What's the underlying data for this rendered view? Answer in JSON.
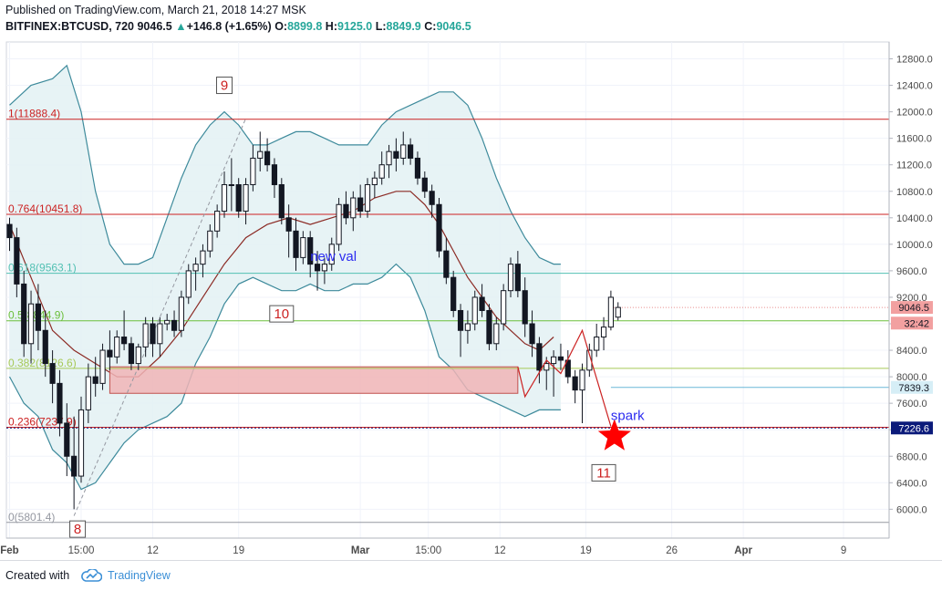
{
  "header": {
    "published": "Published on TradingView.com, March 21, 2018 14:27 MSK",
    "symbol": "BITFINEX:BTCUSD, 720",
    "last": "9046.5",
    "change": "+146.8 (+1.65%)",
    "o_label": "O:",
    "o_value": "8899.8",
    "h_label": "H:",
    "h_value": "9125.0",
    "l_label": "L:",
    "l_value": "8849.9",
    "c_label": "C:",
    "c_value": "9046.5"
  },
  "footer": {
    "created_with": "Created with",
    "brand": "TradingView"
  },
  "colors": {
    "up": "#26a69a",
    "candle": "#131722",
    "bb_line": "#3d8a9b",
    "bb_fill": "#e3f1f3",
    "basis": "#8b2a24",
    "fib_red": "#cc2222",
    "fib_teal": "#52c0b3",
    "fib_green": "#6cbf3c",
    "fib_lime": "#a7c957",
    "zone_fill": "#f0b4b6",
    "zone_edge": "#c0504d",
    "star": "#ff0000",
    "label_blue": "#2c2cf0",
    "price_badge": "#f2a0a0",
    "price_dark": "#0b1a7a",
    "price_blue": "#d6eef6"
  },
  "chart_data": {
    "type": "candlestick",
    "symbol": "BITFINEX:BTCUSD",
    "timeframe": "720",
    "ylim": [
      5700,
      12950
    ],
    "y_ticks": [
      6000,
      6400,
      6800,
      7200,
      7600,
      8000,
      8400,
      8800,
      9200,
      9600,
      10000,
      10400,
      10800,
      11200,
      11600,
      12000,
      12400,
      12800
    ],
    "y_tick_labels": [
      "6000.0",
      "6400.0",
      "6800.0",
      "7200.0",
      "7600.0",
      "8000.0",
      "8400.0",
      "8800.0",
      "9200.0",
      "9600.0",
      "10000.0",
      "10400.0",
      "10800.0",
      "11200.0",
      "11600.0",
      "12000.0",
      "12400.0",
      "12800.0"
    ],
    "x_ticks": [
      {
        "label": "Feb",
        "t": 0,
        "bold": true
      },
      {
        "label": "15:00",
        "t": 10
      },
      {
        "label": "12",
        "t": 20
      },
      {
        "label": "19",
        "t": 32
      },
      {
        "label": "Mar",
        "t": 49,
        "bold": true
      },
      {
        "label": "15:00",
        "t": 58.5
      },
      {
        "label": "12",
        "t": 68.5
      },
      {
        "label": "19",
        "t": 80.5
      },
      {
        "label": "26",
        "t": 92.5
      },
      {
        "label": "Apr",
        "t": 102.5,
        "bold": true
      },
      {
        "label": "9",
        "t": 116.5
      }
    ],
    "candles": [
      [
        10300,
        10400,
        9900,
        10100
      ],
      [
        10100,
        10250,
        9200,
        9400
      ],
      [
        9400,
        9600,
        8300,
        8500
      ],
      [
        8500,
        9300,
        8200,
        9100
      ],
      [
        9100,
        9400,
        8400,
        8700
      ],
      [
        8700,
        9000,
        8000,
        8200
      ],
      [
        8200,
        8400,
        7600,
        7900
      ],
      [
        7900,
        8100,
        7100,
        7300
      ],
      [
        7300,
        7600,
        6500,
        6800
      ],
      [
        6800,
        7400,
        6000,
        6500
      ],
      [
        6500,
        7700,
        6400,
        7500
      ],
      [
        7500,
        8200,
        7300,
        8000
      ],
      [
        8000,
        8300,
        7700,
        7900
      ],
      [
        7900,
        8500,
        7800,
        8400
      ],
      [
        8400,
        8700,
        8100,
        8300
      ],
      [
        8300,
        8700,
        8200,
        8600
      ],
      [
        8600,
        9000,
        8400,
        8500
      ],
      [
        8500,
        8600,
        8100,
        8200
      ],
      [
        8200,
        8500,
        8100,
        8450
      ],
      [
        8450,
        8900,
        8300,
        8800
      ],
      [
        8800,
        8900,
        8300,
        8500
      ],
      [
        8500,
        8900,
        8300,
        8800
      ],
      [
        8800,
        8950,
        8700,
        8850
      ],
      [
        8850,
        9000,
        8600,
        8700
      ],
      [
        8700,
        9300,
        8600,
        9200
      ],
      [
        9200,
        9700,
        9100,
        9600
      ],
      [
        9600,
        9800,
        9300,
        9700
      ],
      [
        9700,
        10000,
        9500,
        9900
      ],
      [
        9900,
        10300,
        9800,
        10200
      ],
      [
        10200,
        10600,
        10100,
        10500
      ],
      [
        10500,
        11100,
        10400,
        10900
      ],
      [
        10900,
        11300,
        10500,
        10900
      ],
      [
        10900,
        11000,
        10400,
        10500
      ],
      [
        10500,
        11000,
        10300,
        10900
      ],
      [
        10900,
        11500,
        10800,
        11300
      ],
      [
        11300,
        11700,
        11100,
        11400
      ],
      [
        11400,
        11600,
        11100,
        11200
      ],
      [
        11200,
        11300,
        10700,
        10900
      ],
      [
        10900,
        11000,
        10300,
        10400
      ],
      [
        10400,
        10600,
        9800,
        10200
      ],
      [
        10200,
        10400,
        9600,
        9800
      ],
      [
        9800,
        10200,
        9700,
        10100
      ],
      [
        10100,
        10200,
        9500,
        9700
      ],
      [
        9700,
        9900,
        9300,
        9600
      ],
      [
        9600,
        9800,
        9400,
        9700
      ],
      [
        9700,
        10100,
        9600,
        10000
      ],
      [
        10000,
        10700,
        9900,
        10600
      ],
      [
        10600,
        10800,
        10300,
        10400
      ],
      [
        10400,
        10800,
        10200,
        10700
      ],
      [
        10700,
        10900,
        10400,
        10500
      ],
      [
        10500,
        11000,
        10400,
        10900
      ],
      [
        10900,
        11100,
        10700,
        11000
      ],
      [
        11000,
        11400,
        10900,
        11200
      ],
      [
        11200,
        11500,
        11000,
        11400
      ],
      [
        11400,
        11600,
        11100,
        11300
      ],
      [
        11300,
        11700,
        11200,
        11500
      ],
      [
        11500,
        11600,
        11200,
        11300
      ],
      [
        11300,
        11400,
        10900,
        11000
      ],
      [
        11000,
        11100,
        10700,
        10800
      ],
      [
        10800,
        10900,
        10400,
        10600
      ],
      [
        10600,
        10700,
        9800,
        9900
      ],
      [
        9900,
        10100,
        9400,
        9500
      ],
      [
        9500,
        9600,
        8900,
        9000
      ],
      [
        9000,
        9100,
        8300,
        8700
      ],
      [
        8700,
        9000,
        8500,
        8800
      ],
      [
        8800,
        9300,
        8700,
        9200
      ],
      [
        9200,
        9400,
        8900,
        9000
      ],
      [
        9000,
        9100,
        8400,
        8500
      ],
      [
        8500,
        8900,
        8400,
        8800
      ],
      [
        8800,
        9400,
        8700,
        9300
      ],
      [
        9300,
        9800,
        9200,
        9700
      ],
      [
        9700,
        9900,
        9200,
        9300
      ],
      [
        9300,
        9500,
        8600,
        8800
      ],
      [
        8800,
        9000,
        8300,
        8500
      ],
      [
        8500,
        8600,
        7900,
        8100
      ],
      [
        8100,
        8300,
        7800,
        8200
      ],
      [
        8200,
        8400,
        7700,
        8300
      ],
      [
        8300,
        8500,
        8100,
        8250
      ],
      [
        8250,
        8400,
        7900,
        8000
      ],
      [
        8000,
        8100,
        7600,
        7800
      ],
      [
        7800,
        8200,
        7300,
        8100
      ],
      [
        8100,
        8500,
        8000,
        8400
      ],
      [
        8400,
        8800,
        8300,
        8600
      ],
      [
        8600,
        8900,
        8400,
        8750
      ],
      [
        8750,
        9300,
        8700,
        9200
      ],
      [
        8900,
        9125,
        8850,
        9046.5
      ]
    ],
    "bollinger": {
      "upper": [
        [
          0,
          12100
        ],
        [
          3,
          12400
        ],
        [
          6,
          12500
        ],
        [
          8,
          12700
        ],
        [
          10,
          12000
        ],
        [
          12,
          10800
        ],
        [
          14,
          10000
        ],
        [
          16,
          9700
        ],
        [
          18,
          9700
        ],
        [
          20,
          9800
        ],
        [
          22,
          10400
        ],
        [
          24,
          11000
        ],
        [
          26,
          11500
        ],
        [
          28,
          11800
        ],
        [
          30,
          12000
        ],
        [
          32,
          11800
        ],
        [
          34,
          11500
        ],
        [
          36,
          11500
        ],
        [
          38,
          11600
        ],
        [
          40,
          11700
        ],
        [
          42,
          11700
        ],
        [
          44,
          11600
        ],
        [
          46,
          11500
        ],
        [
          48,
          11500
        ],
        [
          50,
          11500
        ],
        [
          52,
          11800
        ],
        [
          54,
          12000
        ],
        [
          56,
          12100
        ],
        [
          58,
          12200
        ],
        [
          60,
          12300
        ],
        [
          62,
          12300
        ],
        [
          64,
          12100
        ],
        [
          66,
          11600
        ],
        [
          68,
          11000
        ],
        [
          70,
          10500
        ],
        [
          72,
          10100
        ],
        [
          74,
          9800
        ],
        [
          76,
          9700
        ],
        [
          77,
          9700
        ]
      ],
      "lower": [
        [
          0,
          8000
        ],
        [
          2,
          7600
        ],
        [
          4,
          7400
        ],
        [
          6,
          6900
        ],
        [
          8,
          6700
        ],
        [
          10,
          6300
        ],
        [
          12,
          6400
        ],
        [
          14,
          6700
        ],
        [
          16,
          7000
        ],
        [
          18,
          7200
        ],
        [
          20,
          7300
        ],
        [
          22,
          7400
        ],
        [
          24,
          7600
        ],
        [
          26,
          8200
        ],
        [
          28,
          8600
        ],
        [
          30,
          9100
        ],
        [
          32,
          9400
        ],
        [
          34,
          9500
        ],
        [
          36,
          9400
        ],
        [
          38,
          9300
        ],
        [
          40,
          9300
        ],
        [
          42,
          9400
        ],
        [
          44,
          9300
        ],
        [
          46,
          9300
        ],
        [
          48,
          9400
        ],
        [
          50,
          9400
        ],
        [
          52,
          9500
        ],
        [
          54,
          9700
        ],
        [
          56,
          9500
        ],
        [
          58,
          9000
        ],
        [
          60,
          8300
        ],
        [
          62,
          8100
        ],
        [
          64,
          7800
        ],
        [
          66,
          7700
        ],
        [
          68,
          7600
        ],
        [
          70,
          7500
        ],
        [
          72,
          7400
        ],
        [
          74,
          7500
        ],
        [
          76,
          7500
        ],
        [
          77,
          7500
        ]
      ]
    },
    "basis": [
      [
        0,
        10300
      ],
      [
        3,
        9500
      ],
      [
        6,
        8700
      ],
      [
        9,
        8400
      ],
      [
        12,
        8200
      ],
      [
        15,
        8000
      ],
      [
        18,
        8000
      ],
      [
        21,
        8300
      ],
      [
        24,
        8700
      ],
      [
        27,
        9200
      ],
      [
        30,
        9700
      ],
      [
        33,
        10100
      ],
      [
        36,
        10300
      ],
      [
        39,
        10400
      ],
      [
        42,
        10300
      ],
      [
        45,
        10400
      ],
      [
        48,
        10500
      ],
      [
        51,
        10700
      ],
      [
        54,
        10800
      ],
      [
        56,
        10800
      ],
      [
        58,
        10600
      ],
      [
        60,
        10300
      ],
      [
        62,
        9900
      ],
      [
        64,
        9500
      ],
      [
        66,
        9200
      ],
      [
        68,
        8900
      ],
      [
        70,
        8700
      ],
      [
        72,
        8500
      ],
      [
        74,
        8400
      ],
      [
        76,
        8600
      ]
    ],
    "fib_levels": [
      {
        "label": "1(11888.4)",
        "value": 11888.4,
        "color": "#cc2222"
      },
      {
        "label": "0.764(10451.8)",
        "value": 10451.8,
        "color": "#cc2222"
      },
      {
        "label": "0.618(9563.1)",
        "value": 9563.1,
        "color": "#52c0b3"
      },
      {
        "label": "0.5(8844.9)",
        "value": 8844.9,
        "color": "#6cbf3c"
      },
      {
        "label": "0.382(8126.6)",
        "value": 8126.6,
        "color": "#a7c957"
      },
      {
        "label": "0.236(7237.9)",
        "value": 7237.9,
        "color": "#cc2222"
      },
      {
        "label": "0(5801.4)",
        "value": 5801.4,
        "color": "#9598a1"
      }
    ],
    "zone": {
      "t0": 14,
      "t1": 71,
      "y0": 7750,
      "y1": 8150
    },
    "trend_line": [
      [
        9,
        5900
      ],
      [
        33,
        11900
      ]
    ],
    "red_path": [
      [
        71,
        8150
      ],
      [
        72,
        7700
      ],
      [
        75,
        8250
      ],
      [
        77,
        8050
      ],
      [
        80,
        8700
      ],
      [
        84,
        7250
      ]
    ],
    "annotations": [
      {
        "text": "9",
        "t": 30,
        "v": 12400
      },
      {
        "text": "10",
        "t": 38,
        "v": 8950
      },
      {
        "text": "11",
        "t": 83,
        "v": 6550
      },
      {
        "text": "8",
        "t": 9.5,
        "v": 5700
      },
      {
        "text": "new val",
        "t": 42,
        "v": 9750
      },
      {
        "text": "spark",
        "t": 84,
        "v": 7350
      }
    ],
    "price_badges": [
      {
        "label": "9046.5",
        "value": 9046.5
      },
      {
        "label": "32:42",
        "value": 8810
      },
      {
        "label": "7839.3",
        "value": 7839.3
      },
      {
        "label": "7226.6",
        "value": 7226.6
      }
    ],
    "star": {
      "t": 84.5,
      "v": 7100
    }
  }
}
